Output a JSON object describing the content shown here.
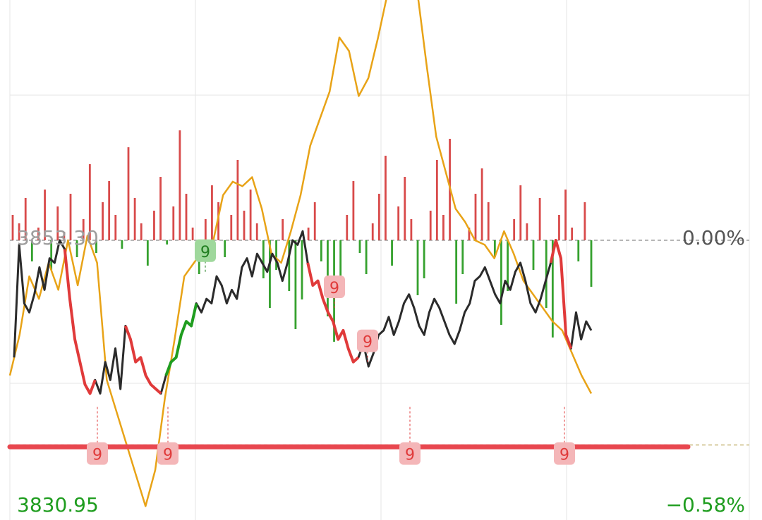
{
  "colors": {
    "price_line": "#2b2b2b",
    "avg_line": "#e8a317",
    "down_seq": "#e03a3a",
    "up_seq": "#1f9d1f",
    "vol_up": "#d84a4a",
    "vol_down": "#35a12e",
    "support": "#e8474f",
    "grid": "#e6e6e6",
    "ref_line": "#9e9e9e",
    "low_line": "#c8b87a",
    "tag_red_bg": "#f4b6b8",
    "tag_red_fg": "#e03a3a",
    "tag_green_bg": "#9fd89c",
    "tag_green_fg": "#1f7d1f"
  },
  "labels": {
    "ref_price": "3853.30",
    "ref_pct": "0.00%",
    "low_price": "3830.95",
    "low_pct": "−0.58%"
  },
  "chart_data": {
    "type": "line",
    "reference_price": 3853.3,
    "y_axis_bottom_price": 3830.95,
    "ylim_pct": [
      -0.58,
      0.67
    ],
    "grid": true,
    "support_level_price": 3836.0,
    "low_marker_price": 3835.8,
    "sequence_marker_label": "9",
    "price_pct": [
      -0.26,
      -0.01,
      -0.14,
      -0.16,
      -0.12,
      -0.06,
      -0.11,
      -0.04,
      -0.05,
      0.0,
      -0.02,
      -0.13,
      -0.22,
      -0.27,
      -0.32,
      -0.34,
      -0.31,
      -0.34,
      -0.27,
      -0.31,
      -0.24,
      -0.33,
      -0.19,
      -0.22,
      -0.27,
      -0.26,
      -0.3,
      -0.32,
      -0.33,
      -0.34,
      -0.3,
      -0.27,
      -0.26,
      -0.21,
      -0.18,
      -0.19,
      -0.14,
      -0.16,
      -0.13,
      -0.14,
      -0.08,
      -0.1,
      -0.14,
      -0.11,
      -0.13,
      -0.06,
      -0.04,
      -0.08,
      -0.03,
      -0.05,
      -0.07,
      -0.03,
      -0.05,
      -0.09,
      -0.05,
      0.0,
      -0.01,
      0.02,
      -0.05,
      -0.1,
      -0.09,
      -0.13,
      -0.16,
      -0.18,
      -0.22,
      -0.2,
      -0.24,
      -0.27,
      -0.26,
      -0.23,
      -0.28,
      -0.25,
      -0.21,
      -0.2,
      -0.17,
      -0.21,
      -0.18,
      -0.14,
      -0.12,
      -0.15,
      -0.19,
      -0.21,
      -0.16,
      -0.13,
      -0.15,
      -0.18,
      -0.21,
      -0.23,
      -0.2,
      -0.16,
      -0.14,
      -0.09,
      -0.08,
      -0.06,
      -0.09,
      -0.12,
      -0.14,
      -0.09,
      -0.11,
      -0.07,
      -0.05,
      -0.09,
      -0.14,
      -0.16,
      -0.13,
      -0.09,
      -0.05,
      0.0,
      -0.04,
      -0.21,
      -0.24,
      -0.16,
      -0.22,
      -0.18,
      -0.2
    ],
    "avg_pct": [
      -0.3,
      -0.21,
      -0.08,
      -0.13,
      -0.05,
      -0.11,
      0.0,
      -0.1,
      0.01,
      -0.05,
      -0.31,
      -0.38,
      -0.45,
      -0.52,
      -0.59,
      -0.51,
      -0.35,
      -0.22,
      -0.08,
      -0.05,
      -0.02,
      0.0,
      0.1,
      0.13,
      0.12,
      0.14,
      0.07,
      -0.03,
      -0.05,
      0.02,
      0.1,
      0.21,
      0.27,
      0.33,
      0.45,
      0.42,
      0.32,
      0.36,
      0.45,
      0.55,
      0.64,
      0.58,
      0.56,
      0.39,
      0.23,
      0.15,
      0.07,
      0.04,
      0.0,
      -0.01,
      -0.04,
      0.02,
      -0.03,
      -0.09,
      -0.12,
      -0.15,
      -0.18,
      -0.2,
      -0.25,
      -0.3,
      -0.34
    ],
    "volume": [
      0.6,
      0.4,
      1.0,
      -0.5,
      0.3,
      1.2,
      -0.7,
      0.8,
      0.2,
      1.1,
      -0.4,
      0.5,
      1.8,
      -0.3,
      0.9,
      1.4,
      0.6,
      -0.2,
      2.2,
      1.0,
      0.4,
      -0.6,
      0.7,
      1.5,
      -0.1,
      0.8,
      2.6,
      1.1,
      0.3,
      -0.8,
      0.5,
      1.3,
      0.9,
      -0.4,
      0.6,
      1.9,
      0.7,
      1.2,
      0.4,
      -0.9,
      -1.6,
      -0.7,
      0.5,
      -1.2,
      -2.1,
      -1.4,
      0.3,
      0.9,
      -0.5,
      -1.8,
      -2.4,
      -1.1,
      0.6,
      1.4,
      -0.3,
      -0.8,
      0.4,
      1.1,
      2.0,
      -0.6,
      0.8,
      1.5,
      0.5,
      -1.3,
      -0.9,
      0.7,
      1.9,
      0.6,
      2.4,
      -1.5,
      -0.8,
      0.3,
      1.1,
      1.7,
      0.9,
      -0.4,
      -2.0,
      -1.2,
      0.5,
      1.3,
      0.4,
      -0.7,
      1.0,
      -1.6,
      -2.3,
      0.6,
      1.2,
      0.3,
      -0.5,
      0.9,
      -1.1
    ],
    "sequence_markers": [
      {
        "label": "9",
        "color": "red",
        "at_pct": -0.37,
        "below": true
      },
      {
        "label": "9",
        "color": "red",
        "at_pct": -0.37,
        "below": true
      },
      {
        "label": "9",
        "color": "green",
        "at_pct": -0.07,
        "below": false
      },
      {
        "label": "9",
        "color": "red",
        "at_pct": -0.15,
        "below": false
      },
      {
        "label": "9",
        "color": "red",
        "at_pct": -0.27,
        "below": false
      },
      {
        "label": "9",
        "color": "red",
        "at_pct": -0.37,
        "below": true
      },
      {
        "label": "9",
        "color": "red",
        "at_pct": -0.37,
        "below": true
      }
    ]
  }
}
